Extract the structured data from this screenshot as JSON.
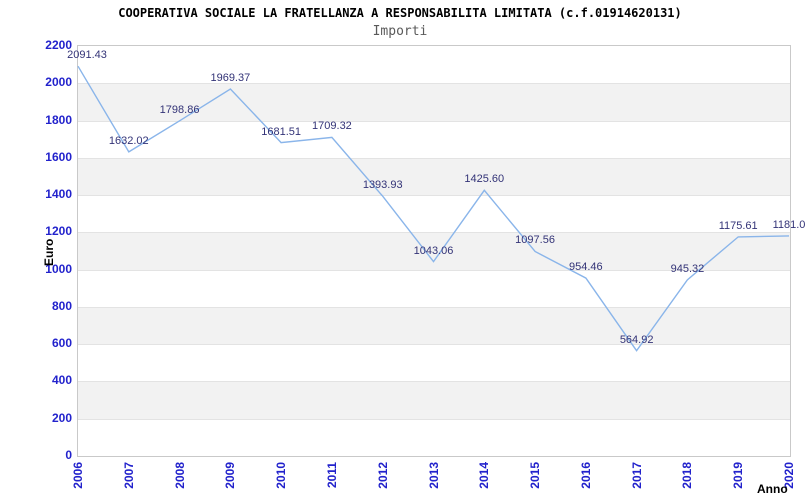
{
  "header": {
    "title": "COOPERATIVA SOCIALE LA FRATELLANZA A RESPONSABILITA LIMITATA (c.f.01914620131)",
    "subtitle": "Importi"
  },
  "axes": {
    "y_label": "Euro",
    "x_label": "Anno"
  },
  "colors": {
    "line": "#8ab5ea",
    "tick_label": "#2222cc",
    "point_label": "#333377",
    "band": "#f2f2f2",
    "gridline": "#e3e3e3",
    "plot_border": "#c9c9c9",
    "title": "#000000",
    "subtitle": "#5a5a5a"
  },
  "chart_data": {
    "type": "line",
    "title": "COOPERATIVA SOCIALE LA FRATELLANZA A RESPONSABILITA LIMITATA (c.f.01914620131)",
    "subtitle": "Importi",
    "xlabel": "Anno",
    "ylabel": "Euro",
    "categories": [
      "2006",
      "2007",
      "2008",
      "2009",
      "2010",
      "2011",
      "2012",
      "2013",
      "2014",
      "2015",
      "2016",
      "2017",
      "2018",
      "2019",
      "2020"
    ],
    "values": [
      2091.43,
      1632.02,
      1798.86,
      1969.37,
      1681.51,
      1709.32,
      1393.93,
      1043.06,
      1425.6,
      1097.56,
      954.46,
      564.92,
      945.32,
      1175.61,
      1181.0
    ],
    "point_labels": [
      "2091.43",
      "1632.02",
      "1798.86",
      "1969.37",
      "1681.51",
      "1709.32",
      "1393.93",
      "1043.06",
      "1425.60",
      "1097.56",
      "954.46",
      "564.92",
      "945.32",
      "1175.61",
      "1181.0"
    ],
    "ylim": [
      0,
      2200
    ],
    "ytick_step": 200,
    "y_ticks": [
      "0",
      "200",
      "400",
      "600",
      "800",
      "1000",
      "1200",
      "1400",
      "1600",
      "1800",
      "2000",
      "2200"
    ],
    "grid": "alternating-horizontal-bands",
    "gray_band_value_starts": [
      200,
      600,
      1000,
      1400,
      1800
    ],
    "legend": false
  }
}
